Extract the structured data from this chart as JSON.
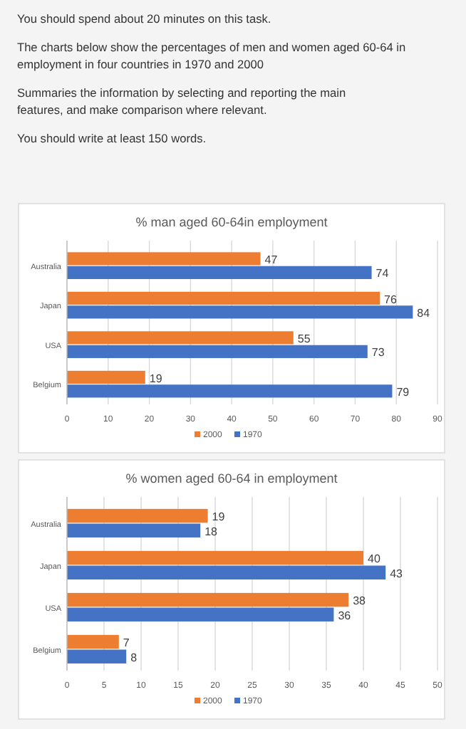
{
  "chart_data": [
    {
      "type": "bar",
      "orientation": "horizontal",
      "title": "% man aged 60-64in employment",
      "annotations": [
        "You should spend about 20 minutes on this task.",
        "The charts below show the percentages of men and women aged 60-64 in employment in four countries in 1970 and 2000",
        "Summaries the information by selecting and reporting the main features, and make comparison where relevant.",
        "You should write at least 150 words."
      ],
      "categories": [
        "Australia",
        "Japan",
        "USA",
        "Belgium"
      ],
      "series": [
        {
          "name": "2000",
          "color": "#ed7d31",
          "values": [
            47,
            76,
            55,
            19
          ]
        },
        {
          "name": "1970",
          "color": "#4472c4",
          "values": [
            74,
            84,
            73,
            79
          ]
        }
      ],
      "xlim": [
        0,
        90
      ],
      "xticks": [
        0,
        10,
        20,
        30,
        40,
        50,
        60,
        70,
        80,
        90
      ],
      "grid": "x",
      "legend": "bottom",
      "data_labels": true
    },
    {
      "type": "bar",
      "orientation": "horizontal",
      "title": "% women aged 60-64 in employment",
      "categories": [
        "Australia",
        "Japan",
        "USA",
        "Belgium"
      ],
      "series": [
        {
          "name": "2000",
          "color": "#ed7d31",
          "values": [
            19,
            40,
            38,
            7
          ]
        },
        {
          "name": "1970",
          "color": "#4472c4",
          "values": [
            18,
            43,
            36,
            8
          ]
        }
      ],
      "xlim": [
        0,
        50
      ],
      "xticks": [
        0,
        5,
        10,
        15,
        20,
        25,
        30,
        35,
        40,
        45,
        50
      ],
      "grid": "x",
      "legend": "bottom",
      "data_labels": true
    }
  ]
}
